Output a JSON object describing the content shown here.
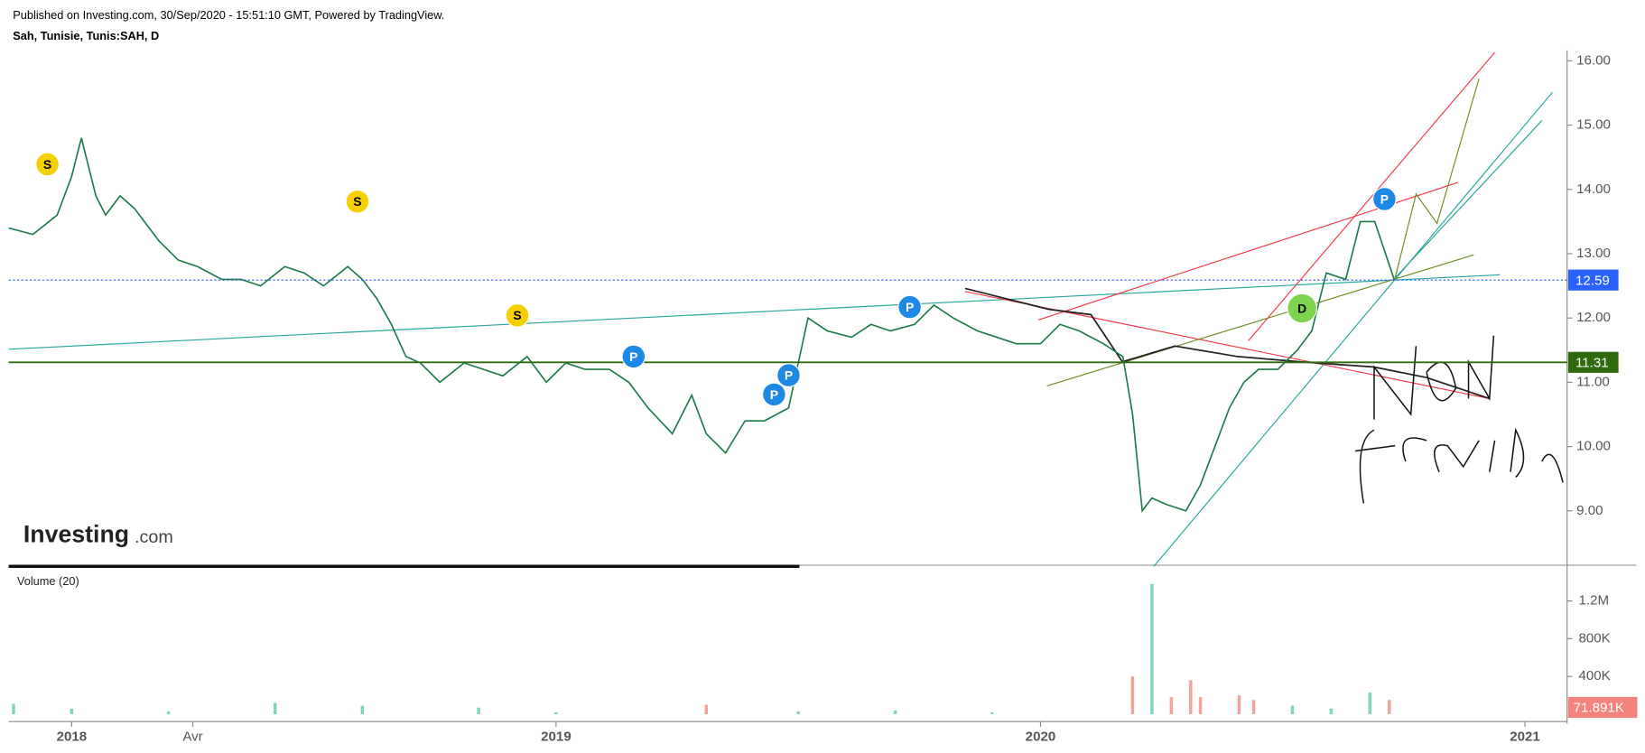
{
  "header": {
    "published": "Published on Investing.com, 30/Sep/2020 - 15:51:10 GMT, Powered by TradingView.",
    "symbol": "Sah, Tunisie, Tunis:SAH, D"
  },
  "logo": {
    "brand": "Investing",
    "suffix": ".com"
  },
  "chart_data": [
    {
      "type": "line",
      "color": "#1b7a47",
      "x": [
        2017.87,
        2017.92,
        2017.97,
        2018.0,
        2018.02,
        2018.05,
        2018.07,
        2018.1,
        2018.13,
        2018.18,
        2018.22,
        2018.26,
        2018.31,
        2018.35,
        2018.39,
        2018.44,
        2018.48,
        2018.52,
        2018.57,
        2018.6,
        2018.63,
        2018.66,
        2018.69,
        2018.72,
        2018.76,
        2018.81,
        2018.85,
        2018.89,
        2018.94,
        2018.98,
        2019.02,
        2019.06,
        2019.11,
        2019.15,
        2019.19,
        2019.24,
        2019.28,
        2019.31,
        2019.35,
        2019.39,
        2019.43,
        2019.48,
        2019.5,
        2019.52,
        2019.56,
        2019.61,
        2019.65,
        2019.69,
        2019.74,
        2019.78,
        2019.82,
        2019.87,
        2019.91,
        2019.95,
        2020.0,
        2020.04,
        2020.08,
        2020.13,
        2020.17,
        2020.19,
        2020.21,
        2020.23,
        2020.26,
        2020.3,
        2020.33,
        2020.36,
        2020.39,
        2020.42,
        2020.45,
        2020.49,
        2020.53,
        2020.56,
        2020.59,
        2020.63,
        2020.66,
        2020.69,
        2020.73
      ],
      "values": [
        13.4,
        13.3,
        13.6,
        14.2,
        14.8,
        13.9,
        13.6,
        13.9,
        13.7,
        13.2,
        12.9,
        12.8,
        12.6,
        12.6,
        12.5,
        12.8,
        12.7,
        12.5,
        12.8,
        12.6,
        12.3,
        11.9,
        11.4,
        11.3,
        11.0,
        11.3,
        11.2,
        11.1,
        11.4,
        11.0,
        11.3,
        11.2,
        11.2,
        11.0,
        10.6,
        10.2,
        10.8,
        10.2,
        9.9,
        10.4,
        10.4,
        10.6,
        11.3,
        12.0,
        11.8,
        11.7,
        11.9,
        11.8,
        11.9,
        12.2,
        12.0,
        11.8,
        11.7,
        11.6,
        11.6,
        11.9,
        11.8,
        11.6,
        11.4,
        10.5,
        9.0,
        9.2,
        9.1,
        9.0,
        9.4,
        10.0,
        10.6,
        11.0,
        11.2,
        11.2,
        11.5,
        11.8,
        12.7,
        12.6,
        13.5,
        13.5,
        12.6
      ],
      "xlim": [
        2017.87,
        2021.087
      ],
      "ylim": [
        8.17,
        16.163
      ],
      "xticks": [
        2018,
        {
          "value": 2018.25,
          "label": "Avr"
        },
        2019,
        2020,
        2021
      ],
      "yticks": [
        {
          "value": 9,
          "label": "9.00"
        },
        {
          "value": 10,
          "label": "10.00"
        },
        {
          "value": 11,
          "label": "11.00"
        },
        {
          "value": 12,
          "label": "12.00"
        },
        {
          "value": 13,
          "label": "13.00"
        },
        {
          "value": 14,
          "label": "14.00"
        },
        {
          "value": 15,
          "label": "15.00"
        },
        {
          "value": 16,
          "label": "16.00"
        }
      ],
      "hlines": [
        {
          "value": 12.59,
          "color": "#2962ff",
          "style": "dotted"
        },
        {
          "value": 11.31,
          "color": "#2e6b0e",
          "style": "solid"
        }
      ],
      "annotations": [
        {
          "x": 2017.95,
          "y": 14.39,
          "label": "S",
          "color": "#f5d000"
        },
        {
          "x": 2018.59,
          "y": 13.81,
          "label": "S",
          "color": "#f5d000"
        },
        {
          "x": 2018.92,
          "y": 12.04,
          "label": "S",
          "color": "#f5d000"
        },
        {
          "x": 2019.16,
          "y": 11.4,
          "label": "P",
          "color": "#1e88e5"
        },
        {
          "x": 2019.45,
          "y": 10.81,
          "label": "P",
          "color": "#1e88e5"
        },
        {
          "x": 2019.48,
          "y": 11.11,
          "label": "P",
          "color": "#1e88e5"
        },
        {
          "x": 2019.73,
          "y": 12.17,
          "label": "P",
          "color": "#1e88e5"
        },
        {
          "x": 2020.54,
          "y": 12.15,
          "label": "D",
          "color": "#7ed34f"
        },
        {
          "x": 2020.71,
          "y": 13.85,
          "label": "P",
          "color": "#1e88e5"
        }
      ]
    },
    {
      "type": "bar",
      "title": "Volume (20)",
      "x": [
        2017.88,
        2018.0,
        2018.2,
        2018.42,
        2018.6,
        2018.84,
        2019.0,
        2019.31,
        2019.5,
        2019.7,
        2019.9,
        2020.19,
        2020.23,
        2020.27,
        2020.31,
        2020.33,
        2020.41,
        2020.44,
        2020.52,
        2020.6,
        2020.68,
        2020.72
      ],
      "values": [
        110000,
        60000,
        30000,
        120000,
        90000,
        70000,
        20000,
        100000,
        30000,
        40000,
        20000,
        400000,
        1380000,
        180000,
        360000,
        180000,
        200000,
        150000,
        90000,
        60000,
        230000,
        150000
      ],
      "colors": [
        "#7fd8b0",
        "#7fd8b0",
        "#7fd8b0",
        "#7fd8b0",
        "#7fd8b0",
        "#7fd8b0",
        "#7fd8b0",
        "#f4a29c",
        "#7fd8b0",
        "#7fd8b0",
        "#7fd8b0",
        "#f4a29c",
        "#7fd8b0",
        "#f4a29c",
        "#f4a29c",
        "#f4a29c",
        "#f4a29c",
        "#f4a29c",
        "#7fd8b0",
        "#7fd8b0",
        "#7fd8b0",
        "#f4a29c"
      ],
      "xlim": [
        2017.87,
        2021.087
      ],
      "ylim": [
        -78000,
        1567000
      ],
      "yticks": [
        {
          "value": 400000,
          "label": "400K"
        },
        {
          "value": 800000,
          "label": "800K"
        },
        {
          "value": 1200000,
          "label": "1.2M"
        }
      ],
      "last": {
        "value": 71891,
        "value_label": "71.891K",
        "color": "#f4837d"
      }
    }
  ]
}
